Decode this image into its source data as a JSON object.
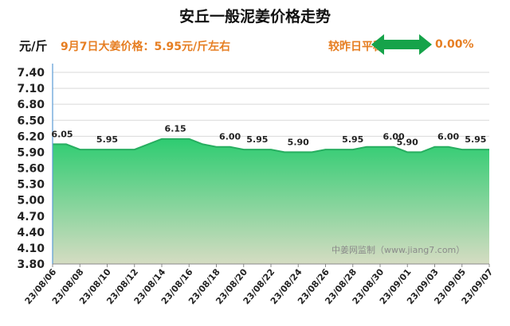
{
  "header": {
    "title": "安丘一般泥姜价格走势",
    "unit": "元/斤",
    "price_note": "9月7日大姜价格：5.95元/斤左右",
    "compare_label": "较昨日平稳",
    "compare_value": "0.00%"
  },
  "watermark": "中姜网监制（www.jiang7.com）",
  "colors": {
    "fill_top": "#2ecc71",
    "fill_bottom": "#d5dcc2",
    "line": "#27ae60",
    "arrow": "#16a34a",
    "accent_text": "#e67e22"
  },
  "chart_data": {
    "type": "area",
    "title": "安丘一般泥姜价格走势",
    "ylabel": "元/斤",
    "ylim": [
      3.8,
      7.4
    ],
    "yticks": [
      "3.80",
      "4.10",
      "4.40",
      "4.70",
      "5.00",
      "5.30",
      "5.60",
      "5.90",
      "6.20",
      "6.50",
      "6.80",
      "7.10",
      "7.40"
    ],
    "x": [
      "23/08/06",
      "23/08/07",
      "23/08/08",
      "23/08/09",
      "23/08/10",
      "23/08/11",
      "23/08/12",
      "23/08/13",
      "23/08/14",
      "23/08/15",
      "23/08/16",
      "23/08/17",
      "23/08/18",
      "23/08/19",
      "23/08/20",
      "23/08/21",
      "23/08/22",
      "23/08/23",
      "23/08/24",
      "23/08/25",
      "23/08/26",
      "23/08/27",
      "23/08/28",
      "23/08/29",
      "23/08/30",
      "23/08/31",
      "23/09/01",
      "23/09/02",
      "23/09/03",
      "23/09/04",
      "23/09/05",
      "23/09/06",
      "23/09/07"
    ],
    "xtick_labels": [
      "23/08/06",
      "23/08/08",
      "23/08/10",
      "23/08/12",
      "23/08/14",
      "23/08/16",
      "23/08/18",
      "23/08/20",
      "23/08/22",
      "23/08/24",
      "23/08/26",
      "23/08/28",
      "23/08/30",
      "23/09/01",
      "23/09/03",
      "23/09/05",
      "23/09/07"
    ],
    "values": [
      6.05,
      6.05,
      5.95,
      5.95,
      5.95,
      5.95,
      5.95,
      6.05,
      6.15,
      6.15,
      6.15,
      6.05,
      6.0,
      6.0,
      5.95,
      5.95,
      5.95,
      5.9,
      5.9,
      5.9,
      5.95,
      5.95,
      5.95,
      6.0,
      6.0,
      6.0,
      5.9,
      5.9,
      6.0,
      6.0,
      5.95,
      5.95,
      5.95
    ],
    "data_labels": [
      {
        "date": "23/08/06",
        "text": "6.05"
      },
      {
        "date": "23/08/10",
        "text": "5.95"
      },
      {
        "date": "23/08/15",
        "text": "6.15"
      },
      {
        "date": "23/08/19",
        "text": "6.00"
      },
      {
        "date": "23/08/21",
        "text": "5.95"
      },
      {
        "date": "23/08/24",
        "text": "5.90"
      },
      {
        "date": "23/08/28",
        "text": "5.95"
      },
      {
        "date": "23/08/31",
        "text": "6.00"
      },
      {
        "date": "23/09/01",
        "text": "5.90"
      },
      {
        "date": "23/09/04",
        "text": "6.00"
      },
      {
        "date": "23/09/06",
        "text": "5.95"
      }
    ],
    "grid": true,
    "legend": "none"
  }
}
